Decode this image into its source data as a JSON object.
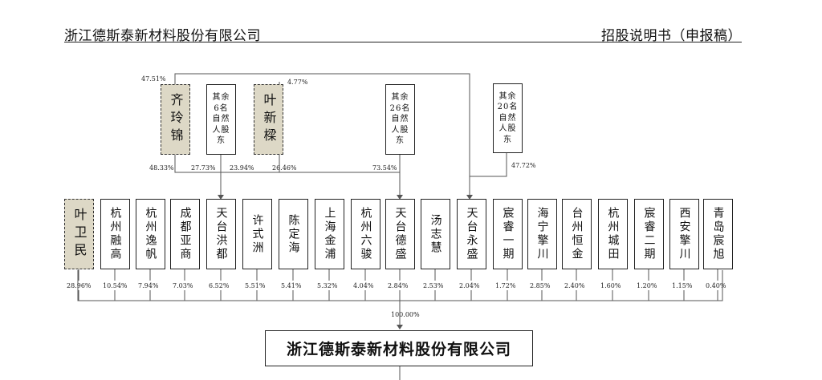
{
  "header": {
    "company": "浙江德斯泰新材料股份有限公司",
    "doc_type": "招股说明书（申报稿）"
  },
  "top_shareholders": [
    {
      "key": "qilingjin",
      "label": "齐玲锦",
      "highlight": true
    },
    {
      "key": "others6",
      "label": "其余\n6名\n自然\n人股\n东",
      "highlight": false
    },
    {
      "key": "yexinliang",
      "label": "叶新樑",
      "highlight": true
    },
    {
      "key": "others26",
      "label": "其余\n26名\n自然\n人股\n东",
      "highlight": false
    },
    {
      "key": "others20",
      "label": "其余\n20名\n自然\n人股\n东",
      "highlight": false
    }
  ],
  "upper_percentages": [
    "47.51%",
    "4.77%",
    "48.33%",
    "27.73%",
    "23.94%",
    "26.46%",
    "73.54%",
    "47.72%"
  ],
  "shareholders": [
    {
      "name": "叶卫民",
      "pct": "28.96%",
      "highlight": true
    },
    {
      "name": "杭州融高",
      "pct": "10.54%"
    },
    {
      "name": "杭州逸帆",
      "pct": "7.94%"
    },
    {
      "name": "成都亚商",
      "pct": "7.03%"
    },
    {
      "name": "天台洪都",
      "pct": "6.52%"
    },
    {
      "name": "许式洲",
      "pct": "5.51%"
    },
    {
      "name": "陈定海",
      "pct": "5.41%"
    },
    {
      "name": "上海金浦",
      "pct": "5.32%"
    },
    {
      "name": "杭州六骏",
      "pct": "4.04%"
    },
    {
      "name": "天台德盛",
      "pct": "2.84%"
    },
    {
      "name": "汤志慧",
      "pct": "2.53%"
    },
    {
      "name": "天台永盛",
      "pct": "2.04%"
    },
    {
      "name": "宸睿一期",
      "pct": "1.72%"
    },
    {
      "name": "海宁擎川",
      "pct": "2.85%"
    },
    {
      "name": "台州恒金",
      "pct": "2.40%"
    },
    {
      "name": "杭州城田",
      "pct": "1.60%"
    },
    {
      "name": "宸睿二期",
      "pct": "1.20%"
    },
    {
      "name": "西安擎川",
      "pct": "1.15%"
    },
    {
      "name": "青岛宸旭",
      "pct": "0.40%"
    }
  ],
  "total_pct": "100.00%",
  "company_box": "浙江德斯泰新材料股份有限公司"
}
